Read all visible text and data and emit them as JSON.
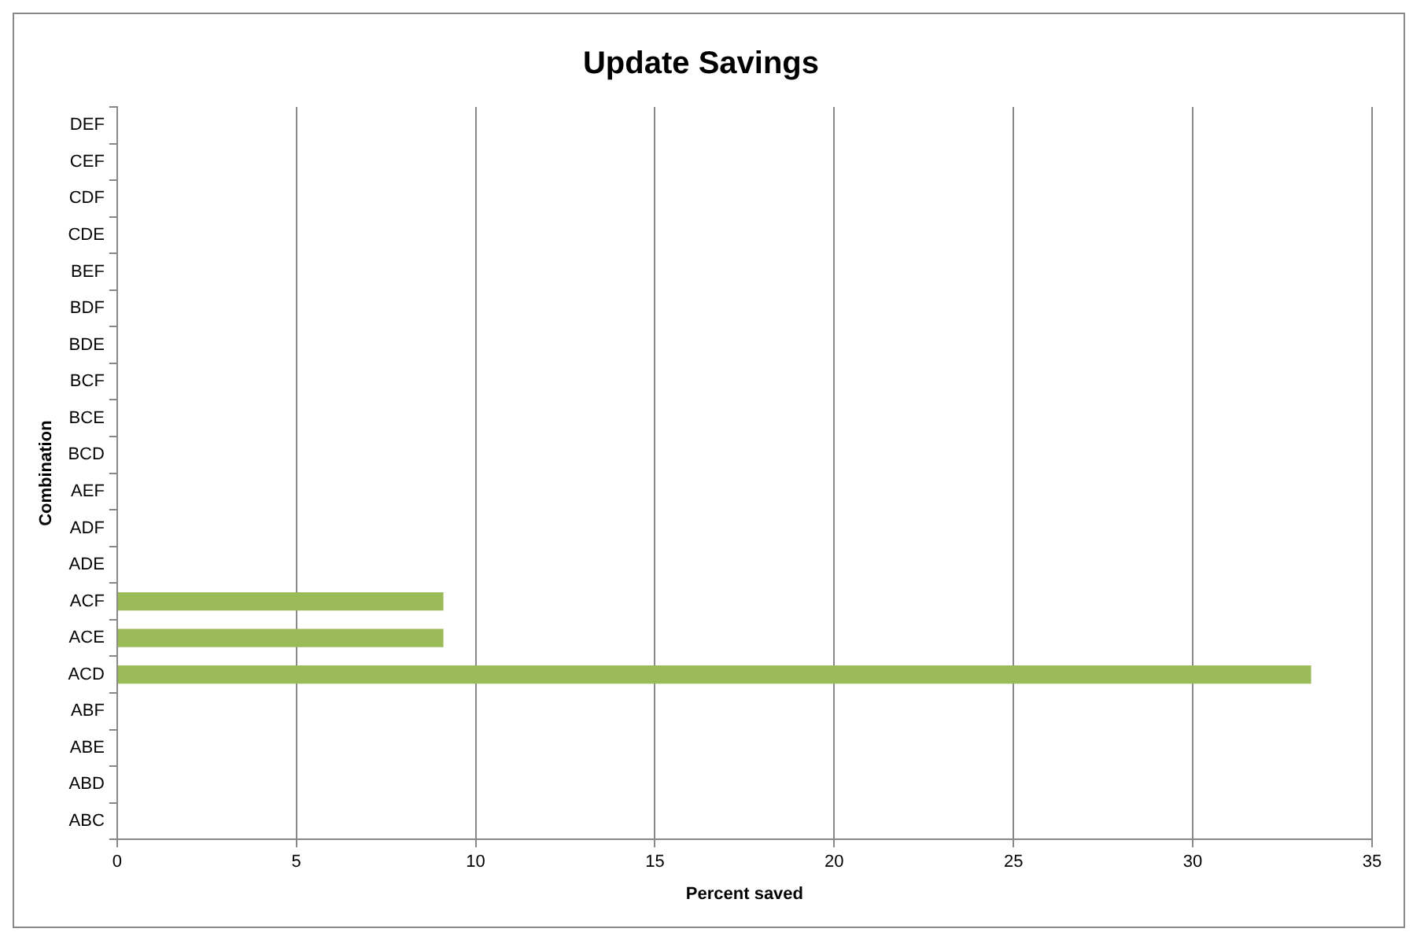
{
  "chart_data": {
    "type": "bar",
    "orientation": "horizontal",
    "title": "Update Savings",
    "xlabel": "Percent saved",
    "ylabel": "Combination",
    "categories": [
      "DEF",
      "CEF",
      "CDF",
      "CDE",
      "BEF",
      "BDF",
      "BDE",
      "BCF",
      "BCE",
      "BCD",
      "AEF",
      "ADF",
      "ADE",
      "ACF",
      "ACE",
      "ACD",
      "ABF",
      "ABE",
      "ABD",
      "ABC"
    ],
    "values": [
      0,
      0,
      0,
      0,
      0,
      0,
      0,
      0,
      0,
      0,
      0,
      0,
      0,
      9.1,
      9.1,
      33.3,
      0,
      0,
      0,
      0
    ],
    "color": "#9bbb59",
    "xlim": [
      0,
      35
    ],
    "xticks": [
      0,
      5,
      10,
      15,
      20,
      25,
      30,
      35
    ],
    "grid": "x",
    "legend": false
  }
}
